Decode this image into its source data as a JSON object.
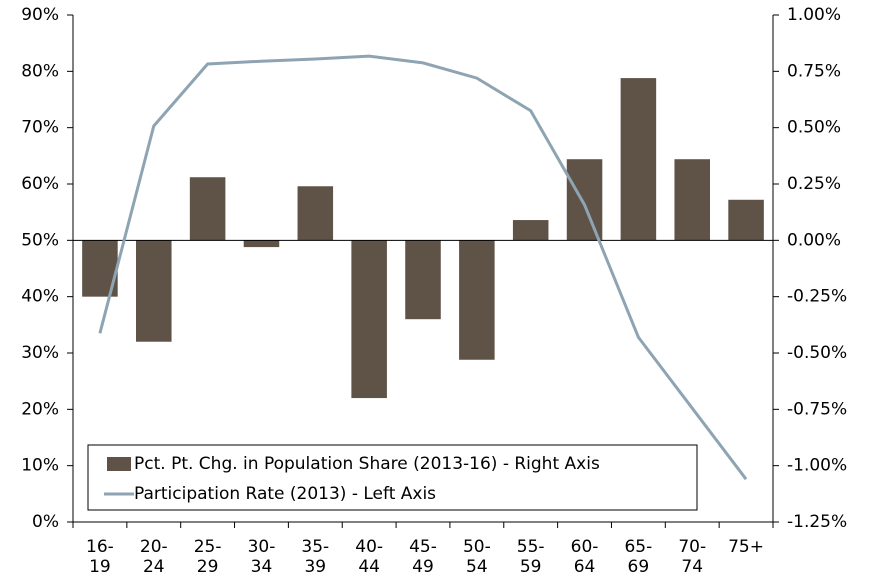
{
  "chart_data": {
    "type": "bar_line",
    "categories": [
      "16- 19",
      "20- 24",
      "25- 29",
      "30- 34",
      "35- 39",
      "40- 44",
      "45- 49",
      "50- 54",
      "55- 59",
      "60- 64",
      "65- 69",
      "70- 74",
      "75+"
    ],
    "series": [
      {
        "name": "Pct. Pt. Chg. in Population Share (2013-16) - Right Axis",
        "color": "#5f5347",
        "type": "bar",
        "axis": "y2",
        "values": [
          -0.25,
          -0.45,
          0.28,
          -0.03,
          0.24,
          -0.7,
          -0.35,
          -0.53,
          0.09,
          0.36,
          0.72,
          0.36,
          0.18
        ]
      },
      {
        "name": "Participation Rate (2013) - Left Axis",
        "color": "#8ea4b3",
        "type": "line",
        "axis": "y",
        "values": [
          33.5,
          70.3,
          81.3,
          81.8,
          82.2,
          82.7,
          81.5,
          78.8,
          73.0,
          56.3,
          32.8,
          20.2,
          7.6
        ]
      }
    ],
    "ylim": [
      0,
      90
    ],
    "yticks": [
      {
        "value": 0,
        "label": "0%"
      },
      {
        "value": 10,
        "label": "10%"
      },
      {
        "value": 20,
        "label": "20%"
      },
      {
        "value": 30,
        "label": "30%"
      },
      {
        "value": 40,
        "label": "40%"
      },
      {
        "value": 50,
        "label": "50%"
      },
      {
        "value": 60,
        "label": "60%"
      },
      {
        "value": 70,
        "label": "70%"
      },
      {
        "value": 80,
        "label": "80%"
      },
      {
        "value": 90,
        "label": "90%"
      }
    ],
    "y2lim": [
      -1.25,
      1.0
    ],
    "y2ticks": [
      {
        "value": -1.25,
        "label": "-1.25%"
      },
      {
        "value": -1.0,
        "label": "-1.00%"
      },
      {
        "value": -0.75,
        "label": "-0.75%"
      },
      {
        "value": -0.5,
        "label": "-0.50%"
      },
      {
        "value": -0.25,
        "label": "-0.25%"
      },
      {
        "value": 0,
        "label": "0.00%"
      },
      {
        "value": 0.25,
        "label": "0.25%"
      },
      {
        "value": 0.5,
        "label": "0.50%"
      },
      {
        "value": 0.75,
        "label": "0.75%"
      },
      {
        "value": 1.0,
        "label": "1.00%"
      }
    ],
    "legend": "lower left"
  }
}
